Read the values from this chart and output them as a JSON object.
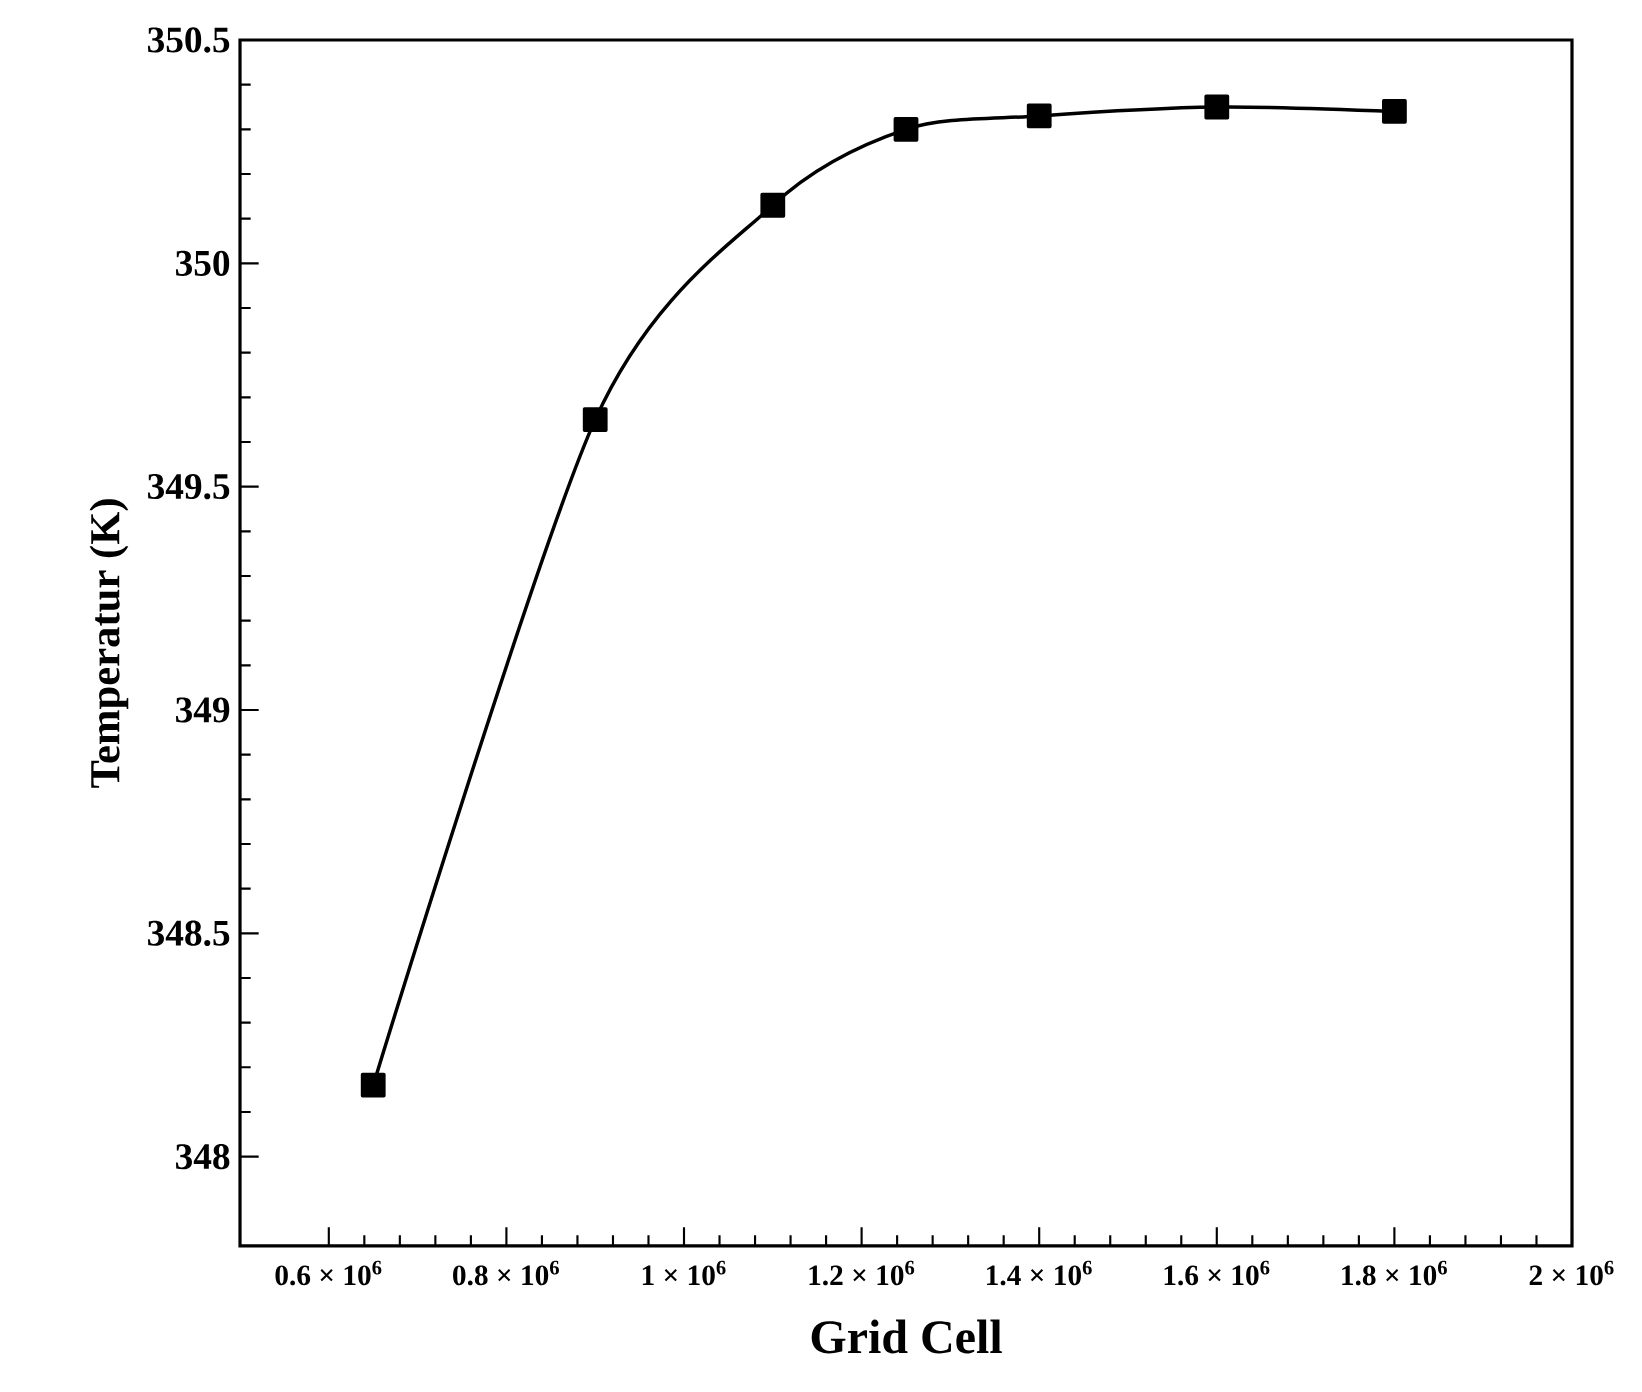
{
  "chart_data": {
    "type": "line",
    "xlabel": "Grid Cell",
    "ylabel": "Temperatur (K)",
    "x": [
      650000,
      900000,
      1100000,
      1250000,
      1400000,
      1600000,
      1800000
    ],
    "series": [
      {
        "color": "#000000",
        "values": [
          348.16,
          349.65,
          350.13,
          350.3,
          350.33,
          350.35,
          350.34
        ]
      }
    ],
    "xlim": [
      500000,
      2000000
    ],
    "ylim": [
      347.8,
      350.5
    ],
    "xticks": [
      {
        "value": 600000,
        "label": "0.6 × 10$^{6}$"
      },
      {
        "value": 800000,
        "label": "0.8 × 10$^{6}$"
      },
      {
        "value": 1000000,
        "label": "1 × 10$^{6}$"
      },
      {
        "value": 1200000,
        "label": "1.2 × 10$^{6}$"
      },
      {
        "value": 1400000,
        "label": "1.4 × 10$^{6}$"
      },
      {
        "value": 1600000,
        "label": "1.6 × 10$^{6}$"
      },
      {
        "value": 1800000,
        "label": "1.8 × 10$^{6}$"
      },
      {
        "value": 2000000,
        "label": "2 × 10$^{6}$"
      }
    ],
    "yticks": [
      348,
      348.5,
      349,
      349.5,
      350,
      350.5
    ],
    "marker": "square",
    "line_style": "solid"
  }
}
